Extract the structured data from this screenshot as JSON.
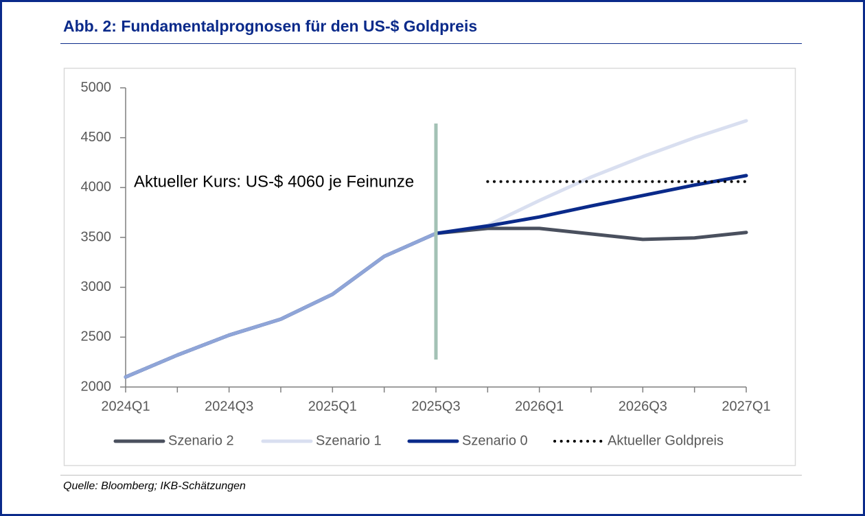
{
  "chart_data": {
    "type": "line",
    "title": "Abb. 2: Fundamentalprognosen für den US-$ Goldpreis",
    "source": "Quelle: Bloomberg; IKB-Schätzungen",
    "annotation": "Aktueller Kurs: US-$ 4060 je Feinunze",
    "categories": [
      "2024Q1",
      null,
      "2024Q3",
      null,
      "2025Q1",
      null,
      "2025Q3",
      null,
      "2026Q1",
      null,
      "2026Q3",
      null,
      "2027Q1"
    ],
    "marker": "2025Q3",
    "marker_color": "#a3c2b5",
    "history_color": "#8fa5d8",
    "ylim": [
      2000,
      5000
    ],
    "yticks": [
      2000,
      2500,
      3000,
      3500,
      4000,
      4500,
      5000
    ],
    "series": [
      {
        "name": "Szenario 2",
        "color": "#4a505e",
        "values": [
          2100,
          2320,
          2520,
          2680,
          2930,
          3310,
          3540,
          3590,
          3590,
          3535,
          3480,
          3495,
          3550
        ]
      },
      {
        "name": "Szenario 1",
        "color": "#d9dff0",
        "values": [
          2100,
          2320,
          2520,
          2680,
          2930,
          3310,
          3540,
          3620,
          3870,
          4105,
          4310,
          4500,
          4670
        ]
      },
      {
        "name": "Szenario 0",
        "color": "#0a2a8a",
        "values": [
          2100,
          2320,
          2520,
          2680,
          2930,
          3310,
          3540,
          3615,
          3705,
          3815,
          3920,
          4025,
          4120
        ]
      },
      {
        "name": "Aktueller Goldpreis",
        "color": "#000000",
        "style": "dotted",
        "values": [
          null,
          null,
          null,
          null,
          null,
          null,
          null,
          4060,
          4060,
          4060,
          4060,
          4060,
          4060
        ]
      }
    ]
  }
}
